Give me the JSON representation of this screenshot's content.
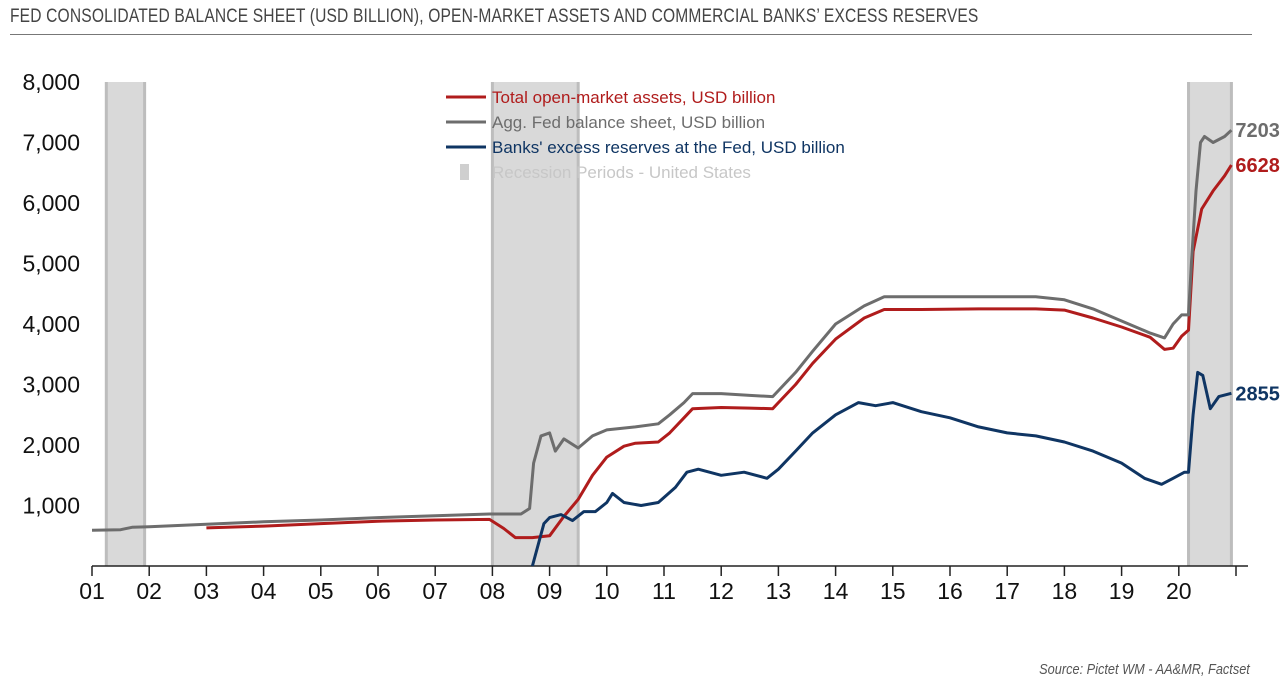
{
  "header": {
    "title": "FED CONSOLIDATED BALANCE SHEET (USD BILLION), OPEN-MARKET ASSETS AND COMMERCIAL BANKS’ EXCESS RESERVES"
  },
  "footer": {
    "source": "Source: Pictet WM - AA&MR, Factset"
  },
  "chart_data": {
    "type": "line",
    "title": "FED CONSOLIDATED BALANCE SHEET (USD BILLION), OPEN-MARKET ASSETS AND COMMERCIAL BANKS’ EXCESS RESERVES",
    "xlabel": "",
    "ylabel": "",
    "ylim": [
      0,
      8000
    ],
    "xlim": [
      2001,
      2021
    ],
    "grid": false,
    "legend_position": "top-center",
    "y_ticks": [
      1000,
      2000,
      3000,
      4000,
      5000,
      6000,
      7000,
      8000
    ],
    "y_tick_labels": [
      "1,000",
      "2,000",
      "3,000",
      "4,000",
      "5,000",
      "6,000",
      "7,000",
      "8,000"
    ],
    "x_ticks": [
      2001,
      2002,
      2003,
      2004,
      2005,
      2006,
      2007,
      2008,
      2009,
      2010,
      2011,
      2012,
      2013,
      2014,
      2015,
      2016,
      2017,
      2018,
      2019,
      2020
    ],
    "x_tick_labels": [
      "01",
      "02",
      "03",
      "04",
      "05",
      "06",
      "07",
      "08",
      "09",
      "10",
      "11",
      "12",
      "13",
      "14",
      "15",
      "16",
      "17",
      "18",
      "19",
      "20"
    ],
    "recessions": [
      [
        2001.25,
        2001.92
      ],
      [
        2008.0,
        2009.5
      ],
      [
        2020.17,
        2020.92
      ]
    ],
    "recession_color": "#d9d9d9",
    "series": [
      {
        "name": "Total open-market assets, USD billion",
        "color": "#b01c1c",
        "end_label": "6628",
        "points": [
          [
            2003.0,
            630
          ],
          [
            2004.0,
            660
          ],
          [
            2005.0,
            700
          ],
          [
            2006.0,
            740
          ],
          [
            2007.0,
            760
          ],
          [
            2007.95,
            770
          ],
          [
            2008.2,
            620
          ],
          [
            2008.4,
            470
          ],
          [
            2008.7,
            470
          ],
          [
            2009.0,
            500
          ],
          [
            2009.25,
            820
          ],
          [
            2009.5,
            1100
          ],
          [
            2009.75,
            1500
          ],
          [
            2010.0,
            1800
          ],
          [
            2010.3,
            1980
          ],
          [
            2010.5,
            2030
          ],
          [
            2010.9,
            2050
          ],
          [
            2011.1,
            2200
          ],
          [
            2011.35,
            2450
          ],
          [
            2011.5,
            2600
          ],
          [
            2012.0,
            2620
          ],
          [
            2012.5,
            2610
          ],
          [
            2012.9,
            2600
          ],
          [
            2013.0,
            2700
          ],
          [
            2013.3,
            3000
          ],
          [
            2013.6,
            3350
          ],
          [
            2014.0,
            3750
          ],
          [
            2014.5,
            4100
          ],
          [
            2014.85,
            4240
          ],
          [
            2015.5,
            4240
          ],
          [
            2016.5,
            4250
          ],
          [
            2017.5,
            4250
          ],
          [
            2018.0,
            4230
          ],
          [
            2018.5,
            4100
          ],
          [
            2019.0,
            3950
          ],
          [
            2019.5,
            3780
          ],
          [
            2019.75,
            3580
          ],
          [
            2019.9,
            3600
          ],
          [
            2020.05,
            3800
          ],
          [
            2020.17,
            3900
          ],
          [
            2020.25,
            5200
          ],
          [
            2020.4,
            5900
          ],
          [
            2020.6,
            6200
          ],
          [
            2020.8,
            6450
          ],
          [
            2020.92,
            6628
          ]
        ]
      },
      {
        "name": "Agg. Fed balance sheet, USD billion",
        "color": "#6d6d6d",
        "end_label": "7203",
        "points": [
          [
            2001.0,
            590
          ],
          [
            2001.5,
            600
          ],
          [
            2001.7,
            640
          ],
          [
            2002.0,
            650
          ],
          [
            2003.0,
            690
          ],
          [
            2004.0,
            730
          ],
          [
            2005.0,
            760
          ],
          [
            2006.0,
            800
          ],
          [
            2007.0,
            830
          ],
          [
            2007.95,
            860
          ],
          [
            2008.5,
            860
          ],
          [
            2008.65,
            950
          ],
          [
            2008.72,
            1700
          ],
          [
            2008.85,
            2150
          ],
          [
            2009.0,
            2200
          ],
          [
            2009.1,
            1900
          ],
          [
            2009.25,
            2100
          ],
          [
            2009.5,
            1950
          ],
          [
            2009.75,
            2150
          ],
          [
            2010.0,
            2250
          ],
          [
            2010.5,
            2300
          ],
          [
            2010.9,
            2350
          ],
          [
            2011.1,
            2500
          ],
          [
            2011.35,
            2700
          ],
          [
            2011.5,
            2850
          ],
          [
            2012.0,
            2850
          ],
          [
            2012.5,
            2820
          ],
          [
            2012.9,
            2800
          ],
          [
            2013.0,
            2900
          ],
          [
            2013.3,
            3200
          ],
          [
            2013.6,
            3550
          ],
          [
            2014.0,
            4000
          ],
          [
            2014.5,
            4300
          ],
          [
            2014.85,
            4450
          ],
          [
            2015.5,
            4450
          ],
          [
            2016.5,
            4450
          ],
          [
            2017.5,
            4450
          ],
          [
            2018.0,
            4400
          ],
          [
            2018.5,
            4250
          ],
          [
            2019.0,
            4050
          ],
          [
            2019.5,
            3850
          ],
          [
            2019.75,
            3770
          ],
          [
            2019.9,
            4000
          ],
          [
            2020.05,
            4150
          ],
          [
            2020.17,
            4150
          ],
          [
            2020.22,
            5000
          ],
          [
            2020.3,
            6200
          ],
          [
            2020.38,
            7000
          ],
          [
            2020.45,
            7100
          ],
          [
            2020.6,
            7000
          ],
          [
            2020.8,
            7100
          ],
          [
            2020.92,
            7203
          ]
        ]
      },
      {
        "name": "Banks' excess reserves at the Fed, USD billion",
        "color": "#0f3563",
        "end_label": "2855",
        "points": [
          [
            2008.7,
            0
          ],
          [
            2008.9,
            700
          ],
          [
            2009.0,
            800
          ],
          [
            2009.2,
            850
          ],
          [
            2009.4,
            750
          ],
          [
            2009.6,
            900
          ],
          [
            2009.8,
            900
          ],
          [
            2010.0,
            1050
          ],
          [
            2010.1,
            1200
          ],
          [
            2010.3,
            1050
          ],
          [
            2010.6,
            1000
          ],
          [
            2010.9,
            1050
          ],
          [
            2011.2,
            1300
          ],
          [
            2011.4,
            1550
          ],
          [
            2011.6,
            1600
          ],
          [
            2012.0,
            1500
          ],
          [
            2012.4,
            1550
          ],
          [
            2012.8,
            1450
          ],
          [
            2013.0,
            1600
          ],
          [
            2013.3,
            1900
          ],
          [
            2013.6,
            2200
          ],
          [
            2014.0,
            2500
          ],
          [
            2014.4,
            2700
          ],
          [
            2014.7,
            2650
          ],
          [
            2015.0,
            2700
          ],
          [
            2015.5,
            2550
          ],
          [
            2016.0,
            2450
          ],
          [
            2016.5,
            2300
          ],
          [
            2017.0,
            2200
          ],
          [
            2017.5,
            2150
          ],
          [
            2018.0,
            2050
          ],
          [
            2018.5,
            1900
          ],
          [
            2019.0,
            1700
          ],
          [
            2019.4,
            1450
          ],
          [
            2019.7,
            1350
          ],
          [
            2019.9,
            1450
          ],
          [
            2020.1,
            1550
          ],
          [
            2020.17,
            1550
          ],
          [
            2020.25,
            2500
          ],
          [
            2020.33,
            3200
          ],
          [
            2020.42,
            3150
          ],
          [
            2020.55,
            2600
          ],
          [
            2020.7,
            2800
          ],
          [
            2020.92,
            2855
          ]
        ]
      }
    ],
    "legend_extra": "Recession Periods - United States",
    "legend_extra_color": "#cfcfcf"
  }
}
